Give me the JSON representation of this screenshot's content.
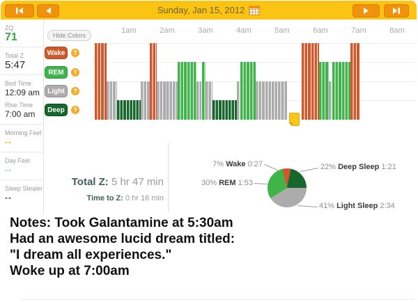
{
  "topbar": {
    "date": "Sunday, Jan 15, 2012",
    "first_button": "first-day",
    "prev_button": "previous-day",
    "next_button": "next-day",
    "last_button": "last-day"
  },
  "colors": {
    "wake": "#D2582B",
    "rem": "#3EB549",
    "light": "#ACACAC",
    "deep": "#17682D",
    "bar_yellow": "#FBC412",
    "button_orange": "#F0920C",
    "zq_green": "#3BA441",
    "summary_teal": "#40615A",
    "morning_feel_dash": "#F5A623",
    "day_feel_dash": "#85C1E3",
    "sleep_stealer_dash": "#444444"
  },
  "sidebar": {
    "sections": [
      {
        "rows": [
          {
            "label": "ZQ",
            "value": "71",
            "style": "zq"
          }
        ]
      },
      {
        "rows": [
          {
            "label": "Total Z",
            "value": "5:47",
            "style": "big"
          }
        ]
      },
      {
        "rows": [
          {
            "label": "Bed Time",
            "value": "12:09 am",
            "style": "time"
          },
          {
            "label": "Rise Time",
            "value": "7:00 am",
            "style": "time"
          }
        ]
      },
      {
        "rows": [
          {
            "label": "Morning Feel",
            "value": "--",
            "style": "dash-orange"
          }
        ]
      },
      {
        "rows": [
          {
            "label": "Day Feel",
            "value": "--",
            "style": "dash-blue"
          }
        ]
      },
      {
        "rows": [
          {
            "label": "Sleep Stealer",
            "value": "--",
            "style": "dash-dark"
          }
        ]
      }
    ]
  },
  "legend": {
    "hide_colors": "Hide Colors",
    "help_glyph": "?",
    "phases": [
      {
        "id": "wake",
        "label": "Wake",
        "color": "#D2582B",
        "border": "#B04517"
      },
      {
        "id": "rem",
        "label": "REM",
        "color": "#3EB549",
        "border": "#2E9038"
      },
      {
        "id": "light",
        "label": "Light",
        "color": "#ACACAC",
        "border": "#909090"
      },
      {
        "id": "deep",
        "label": "Deep",
        "color": "#17682D",
        "border": "#0E4A1F"
      }
    ]
  },
  "chart_data": [
    {
      "type": "area",
      "variant": "hypnogram",
      "x_ticks": [
        "1am",
        "2am",
        "3am",
        "4am",
        "5am",
        "6am",
        "7am",
        "8am"
      ],
      "x_axis_note": "time of night, chart spans 12am-8am, 5-minute epochs",
      "levels_top_to_bottom": [
        "Wake",
        "REM",
        "Light",
        "Deep"
      ],
      "segments": [
        {
          "phase": "Wake",
          "start_min": 7,
          "end_min": 25
        },
        {
          "phase": "Light",
          "start_min": 25,
          "end_min": 41
        },
        {
          "phase": "Deep",
          "start_min": 41,
          "end_min": 79
        },
        {
          "phase": "Light",
          "start_min": 79,
          "end_min": 93
        },
        {
          "phase": "Wake",
          "start_min": 93,
          "end_min": 104
        },
        {
          "phase": "Light",
          "start_min": 104,
          "end_min": 136
        },
        {
          "phase": "REM",
          "start_min": 136,
          "end_min": 166
        },
        {
          "phase": "Light",
          "start_min": 166,
          "end_min": 174
        },
        {
          "phase": "REM",
          "start_min": 174,
          "end_min": 180
        },
        {
          "phase": "Light",
          "start_min": 180,
          "end_min": 191
        },
        {
          "phase": "Deep",
          "start_min": 191,
          "end_min": 229
        },
        {
          "phase": "Light",
          "start_min": 229,
          "end_min": 234
        },
        {
          "phase": "REM",
          "start_min": 234,
          "end_min": 258
        },
        {
          "phase": "Light",
          "start_min": 258,
          "end_min": 309
        },
        {
          "phase": "Wake",
          "start_min": 330,
          "end_min": 358
        },
        {
          "phase": "REM",
          "start_min": 358,
          "end_min": 373
        },
        {
          "phase": "Light",
          "start_min": 373,
          "end_min": 378
        },
        {
          "phase": "REM",
          "start_min": 378,
          "end_min": 407
        },
        {
          "phase": "Wake",
          "start_min": 407,
          "end_min": 422
        }
      ]
    },
    {
      "type": "pie",
      "clockwise_from_top": true,
      "start_angle_deg": -14,
      "slices": [
        {
          "label": "Wake",
          "pct": 7,
          "duration": "0:27"
        },
        {
          "label": "Deep Sleep",
          "pct": 22,
          "duration": "1:21"
        },
        {
          "label": "Light Sleep",
          "pct": 41,
          "duration": "2:34"
        },
        {
          "label": "REM",
          "pct": 30,
          "duration": "1:53"
        }
      ]
    }
  ],
  "summary": {
    "total_z_label": "Total Z:",
    "total_z_value": " 5 hr 47 min",
    "time_to_z_label": "Time to Z:",
    "time_to_z_value": " 0 hr 16 min"
  },
  "notes": {
    "lines": [
      "Notes: Took Galantamine at 5:30am",
      "Had an awesome lucid dream titled:",
      "\"I dream all experiences.\"",
      "Woke up at 7:00am"
    ]
  }
}
